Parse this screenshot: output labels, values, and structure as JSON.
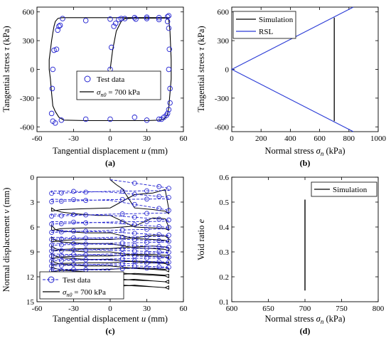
{
  "colors": {
    "test": "#1f1fd0",
    "simulation": "#000000",
    "rsl": "#2a3bd6"
  },
  "chart_data": [
    {
      "panel": "(a)",
      "type": "line",
      "xlabel": "Tangential displacement u (mm)",
      "ylabel": "Tangential stress τ (kPa)",
      "xlim": [
        -60,
        60
      ],
      "ylim": [
        -650,
        650
      ],
      "xticks": [
        -60,
        -30,
        0,
        30,
        60
      ],
      "yticks": [
        -600,
        -300,
        0,
        300,
        600
      ],
      "legend": {
        "position": "center",
        "entries": [
          "Test data",
          "σn0 = 700 kPa"
        ]
      },
      "series": [
        {
          "name": "σn0 = 700 kPa",
          "style": "solid",
          "x": [
            0,
            2,
            5,
            9,
            12,
            20,
            30,
            40,
            45,
            47,
            48,
            49,
            50,
            50,
            49,
            48,
            47,
            44,
            40,
            30,
            0,
            -20,
            -38,
            -42,
            -45,
            -47,
            -48,
            -49,
            -50,
            -50,
            -49,
            -48,
            -47,
            -46,
            -45,
            -43,
            -42,
            -39,
            -30,
            0,
            20,
            40,
            48,
            49
          ],
          "y": [
            0,
            200,
            400,
            500,
            530,
            535,
            535,
            535,
            535,
            535,
            520,
            400,
            100,
            -100,
            -250,
            -400,
            -470,
            -520,
            -530,
            -535,
            -535,
            -535,
            -530,
            -500,
            -440,
            -380,
            -250,
            -100,
            0,
            100,
            200,
            300,
            380,
            450,
            500,
            530,
            535,
            540,
            540,
            540,
            540,
            540,
            540,
            540
          ]
        },
        {
          "name": "Test data",
          "style": "markers",
          "x": [
            0,
            1,
            3,
            4.5,
            7,
            9,
            12,
            21,
            30,
            40,
            47,
            48,
            48.5,
            48,
            49,
            49,
            48,
            47,
            46,
            44,
            42,
            40,
            30,
            20,
            0,
            -20,
            -40,
            -45,
            -47,
            -48,
            -47.5,
            -47,
            -46,
            -44,
            -43,
            -42,
            -41,
            -39,
            -20,
            0,
            20,
            30,
            40,
            47,
            48
          ],
          "y": [
            0,
            230,
            450,
            480,
            520,
            530,
            530,
            525,
            530,
            520,
            500,
            430,
            210,
            0,
            -200,
            -350,
            -420,
            -460,
            -480,
            -500,
            -520,
            -520,
            -530,
            -500,
            -520,
            -520,
            -530,
            -560,
            -540,
            -460,
            -200,
            0,
            200,
            210,
            410,
            450,
            460,
            530,
            510,
            525,
            540,
            545,
            540,
            550,
            560
          ]
        }
      ]
    },
    {
      "panel": "(b)",
      "type": "line",
      "xlabel": "Normal stress σn (kPa)",
      "ylabel": "Tangential stress τ (kPa)",
      "xlim": [
        0,
        1000
      ],
      "ylim": [
        -650,
        650
      ],
      "xticks": [
        0,
        200,
        400,
        600,
        800,
        1000
      ],
      "yticks": [
        -600,
        -300,
        0,
        300,
        600
      ],
      "legend": {
        "position": "top-left",
        "entries": [
          "Simulation",
          "RSL"
        ]
      },
      "series": [
        {
          "name": "Simulation",
          "x": [
            700,
            700
          ],
          "y": [
            -540,
            540
          ]
        },
        {
          "name": "RSL",
          "x": [
            830,
            0,
            830
          ],
          "y": [
            650,
            0,
            -650
          ]
        }
      ]
    },
    {
      "panel": "(c)",
      "type": "line",
      "xlabel": "Tangential displacement u (mm)",
      "ylabel": "Normal displacement v (mm)",
      "xlim": [
        -60,
        60
      ],
      "ylim": [
        15,
        0
      ],
      "xticks": [
        -60,
        -30,
        0,
        30,
        60
      ],
      "yticks": [
        0,
        3,
        6,
        9,
        12,
        15
      ],
      "legend": {
        "position": "bottom-left",
        "entries": [
          "Test data",
          "σn0 = 700 kPa"
        ]
      },
      "simulation_cycles": [
        {
          "start": 0.3,
          "plateau": 3.9,
          "end": 4.6
        },
        {
          "start": 4.6,
          "plateau": 6.1,
          "end": 6.7
        },
        {
          "start": 6.7,
          "plateau": 7.5,
          "end": 8.0
        },
        {
          "start": 8.0,
          "plateau": 8.6,
          "end": 9.0
        },
        {
          "start": 9.0,
          "plateau": 9.5,
          "end": 9.9
        },
        {
          "start": 9.9,
          "plateau": 10.3,
          "end": 10.7
        },
        {
          "start": 10.7,
          "plateau": 11.1,
          "end": 11.4
        },
        {
          "start": 11.4,
          "plateau": 11.8,
          "end": 12.2
        },
        {
          "start": 12.2,
          "plateau": 12.5,
          "end": 12.9
        },
        {
          "start": 12.9,
          "plateau": 13.2,
          "end": 13.8
        }
      ],
      "test_cycles": [
        {
          "start": 0.3,
          "plateau": 1.6,
          "end": 1.8
        },
        {
          "start": 1.8,
          "plateau": 2.6,
          "end": 2.8
        },
        {
          "start": 2.8,
          "plateau": 4.3,
          "end": 4.6
        },
        {
          "start": 4.6,
          "plateau": 5.3,
          "end": 5.5
        },
        {
          "start": 5.5,
          "plateau": 6.2,
          "end": 6.6
        },
        {
          "start": 6.6,
          "plateau": 7.1,
          "end": 7.4
        },
        {
          "start": 7.4,
          "plateau": 7.8,
          "end": 8.1
        },
        {
          "start": 8.1,
          "plateau": 8.5,
          "end": 8.8
        },
        {
          "start": 8.8,
          "plateau": 9.1,
          "end": 9.4
        },
        {
          "start": 9.4,
          "plateau": 9.7,
          "end": 10.0
        },
        {
          "start": 10.0,
          "plateau": 10.3,
          "end": 10.6
        },
        {
          "start": 10.6,
          "plateau": 10.9,
          "end": 11.2
        }
      ]
    },
    {
      "panel": "(d)",
      "type": "line",
      "xlabel": "Normal stress σn (kPa)",
      "ylabel": "Void ratio e",
      "xlim": [
        600,
        800
      ],
      "ylim": [
        0.1,
        0.6
      ],
      "xticks": [
        600,
        650,
        700,
        750,
        800
      ],
      "yticks": [
        0.1,
        0.2,
        0.3,
        0.4,
        0.5,
        0.6
      ],
      "legend": {
        "position": "top-right",
        "entries": [
          "Simulation"
        ]
      },
      "series": [
        {
          "name": "Simulation",
          "x": [
            700,
            700
          ],
          "y": [
            0.145,
            0.51
          ]
        }
      ]
    }
  ],
  "legend_text": {
    "test": "Test data",
    "sim_prefix": "σ",
    "sim_sub": "n0",
    "sim_suffix": " = 700 kPa",
    "simulation": "Simulation",
    "rsl": "RSL"
  },
  "labels": {
    "a_x_main": "Tangential displacement ",
    "a_x_var": "u",
    "a_x_unit": " (mm)",
    "a_y_main": "Tangential stress ",
    "a_y_var": "τ",
    "a_y_unit": " (kPa)",
    "b_x_main": "Normal stress ",
    "b_x_var": "σ",
    "b_x_sub": "n",
    "b_x_unit": " (kPa)",
    "c_y_main": "Normal displacement ",
    "c_y_var": "v",
    "c_y_unit": " (mm)",
    "d_y_main": "Void ratio ",
    "d_y_var": "e"
  },
  "captions": {
    "a": "(a)",
    "b": "(b)",
    "c": "(c)",
    "d": "(d)"
  }
}
